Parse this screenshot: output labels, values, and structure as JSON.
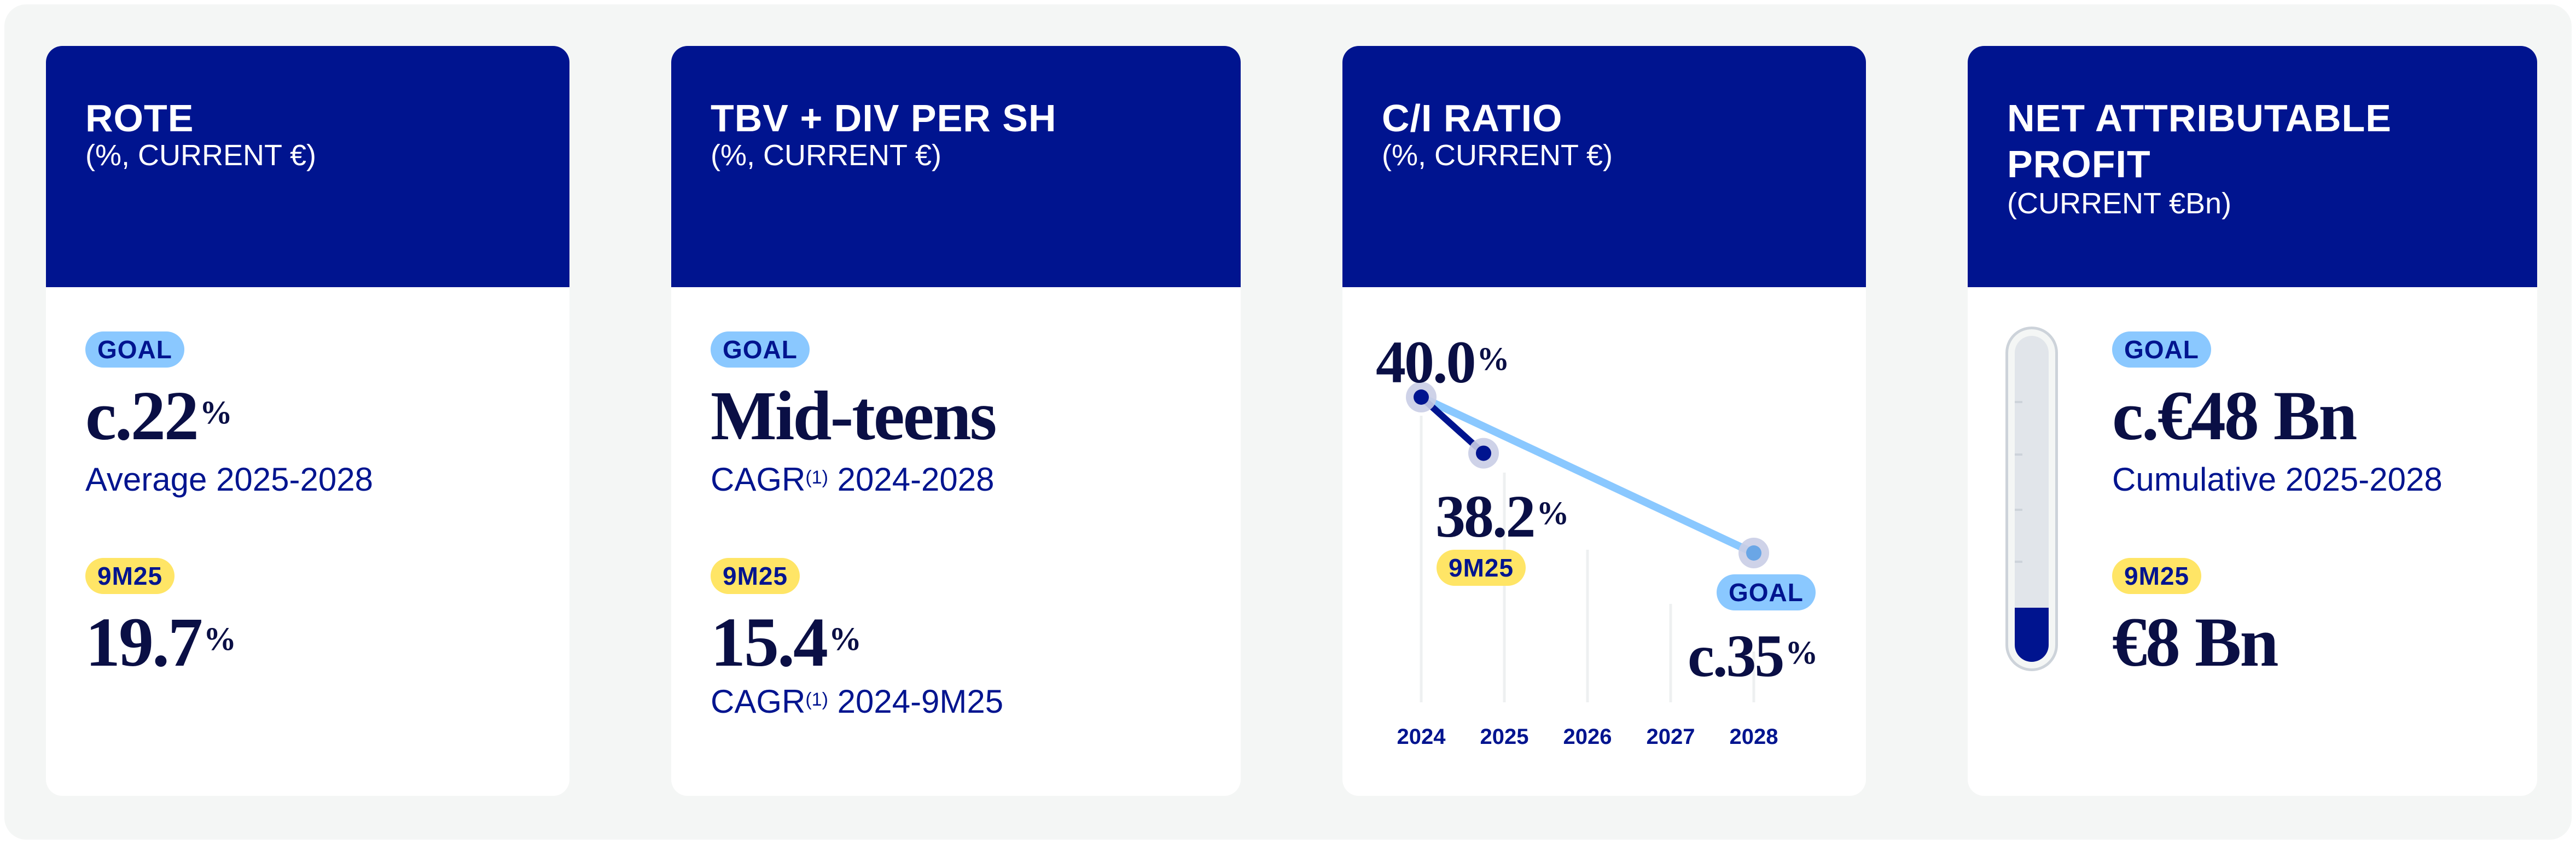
{
  "colors": {
    "header": "#00148f",
    "value_text": "#0a0f45",
    "label_text": "#00148f",
    "goal_pill": "#8ac8ff",
    "ytd_pill": "#ffe566",
    "goal_line": "#8ac8ff",
    "actual_line": "#00148f",
    "point_halo": "#c9cde6"
  },
  "cards": [
    {
      "title": "ROTE",
      "subtitle": "(%, CURRENT €)",
      "goal": {
        "badge": "GOAL",
        "value": "c.22",
        "unit": "%",
        "note": "Average 2025-2028"
      },
      "ytd": {
        "badge": "9M25",
        "value": "19.7",
        "unit": "%"
      }
    },
    {
      "title": "TBV + DIV PER SH",
      "subtitle": "(%, CURRENT €)",
      "goal": {
        "badge": "GOAL",
        "value": "Mid-teens",
        "note_prefix": "CAGR",
        "note_sup": "(1)",
        "note_suffix": " 2024-2028"
      },
      "ytd": {
        "badge": "9M25",
        "value": "15.4",
        "unit": "%",
        "note_prefix": "CAGR",
        "note_sup": "(1)",
        "note_suffix": " 2024-9M25"
      }
    },
    {
      "title": "C/I RATIO",
      "subtitle": "(%, CURRENT €)",
      "labels": {
        "start_value": "40.0",
        "start_unit": "%",
        "ytd_value": "38.2",
        "ytd_unit": "%",
        "ytd_badge": "9M25",
        "goal_badge": "GOAL",
        "goal_value": "c.35",
        "goal_unit": "%"
      }
    },
    {
      "title_line1": "NET ATTRIBUTABLE",
      "title_line2": "PROFIT",
      "subtitle": "(CURRENT €Bn)",
      "goal": {
        "badge": "GOAL",
        "value": "c.€48 Bn",
        "note": "Cumulative 2025-2028"
      },
      "ytd": {
        "badge": "9M25",
        "value": "€8 Bn"
      },
      "gauge": {
        "current": 8,
        "target": 48,
        "fill_fraction": 0.167
      }
    }
  ],
  "chart_data": {
    "type": "line",
    "title": "C/I RATIO",
    "subtitle": "(%, CURRENT €)",
    "categories": [
      "2024",
      "2025",
      "2026",
      "2027",
      "2028"
    ],
    "series": [
      {
        "name": "9M25",
        "points": [
          {
            "x": 2024,
            "label": "2024",
            "y": 40.0
          },
          {
            "x": 2024.75,
            "label": "9M25",
            "y": 38.2
          }
        ]
      },
      {
        "name": "GOAL",
        "points": [
          {
            "x": 2024,
            "label": "2024",
            "y": 40.0
          },
          {
            "x": 2028,
            "label": "2028",
            "y": 35
          }
        ]
      }
    ],
    "xlim": [
      2024,
      2028
    ],
    "grid": "vertical"
  }
}
